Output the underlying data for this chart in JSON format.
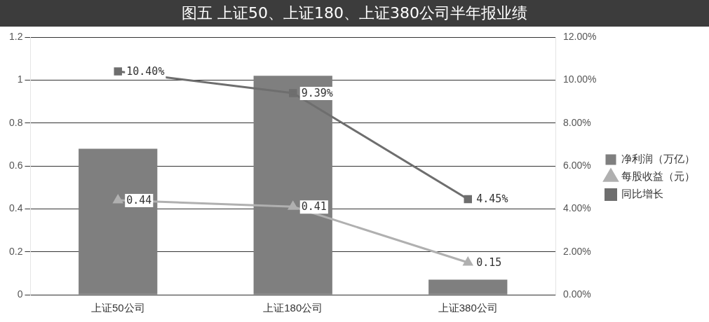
{
  "chart_data": {
    "type": "bar",
    "title": "图五  上证50、上证180、上证380公司半年报业绩",
    "categories": [
      "上证50公司",
      "上证180公司",
      "上证380公司"
    ],
    "series": [
      {
        "name": "净利润（万亿）",
        "color": "#7f7f7f",
        "values": [
          0.68,
          1.02,
          0.07
        ]
      },
      {
        "name": "每股收益（元）",
        "type": "line",
        "color": "#b0b0b0",
        "marker": "triangle",
        "values": [
          0.44,
          0.41,
          0.15
        ],
        "value_labels": [
          "0.44",
          "0.41",
          "0.15"
        ]
      },
      {
        "name": "同比增长",
        "type": "line",
        "axis": "y2",
        "color": "#6e6e6e",
        "marker": "square",
        "values": [
          10.4,
          9.39,
          4.45
        ],
        "value_labels": [
          "10.40%",
          "9.39%",
          "4.45%"
        ]
      }
    ],
    "ylim": [
      0,
      1.2
    ],
    "yticks": [
      0,
      0.2,
      0.4,
      0.6,
      0.8,
      1,
      1.2
    ],
    "y2lim": [
      0,
      12
    ],
    "y2ticks": [
      {
        "value": 0,
        "label": "0.00%"
      },
      {
        "value": 2,
        "label": "2.00%"
      },
      {
        "value": 4,
        "label": "4.00%"
      },
      {
        "value": 6,
        "label": "6.00%"
      },
      {
        "value": 8,
        "label": "8.00%"
      },
      {
        "value": 10,
        "label": "10.00%"
      },
      {
        "value": 12,
        "label": "12.00%"
      }
    ],
    "grid": "y",
    "legend": "right"
  }
}
